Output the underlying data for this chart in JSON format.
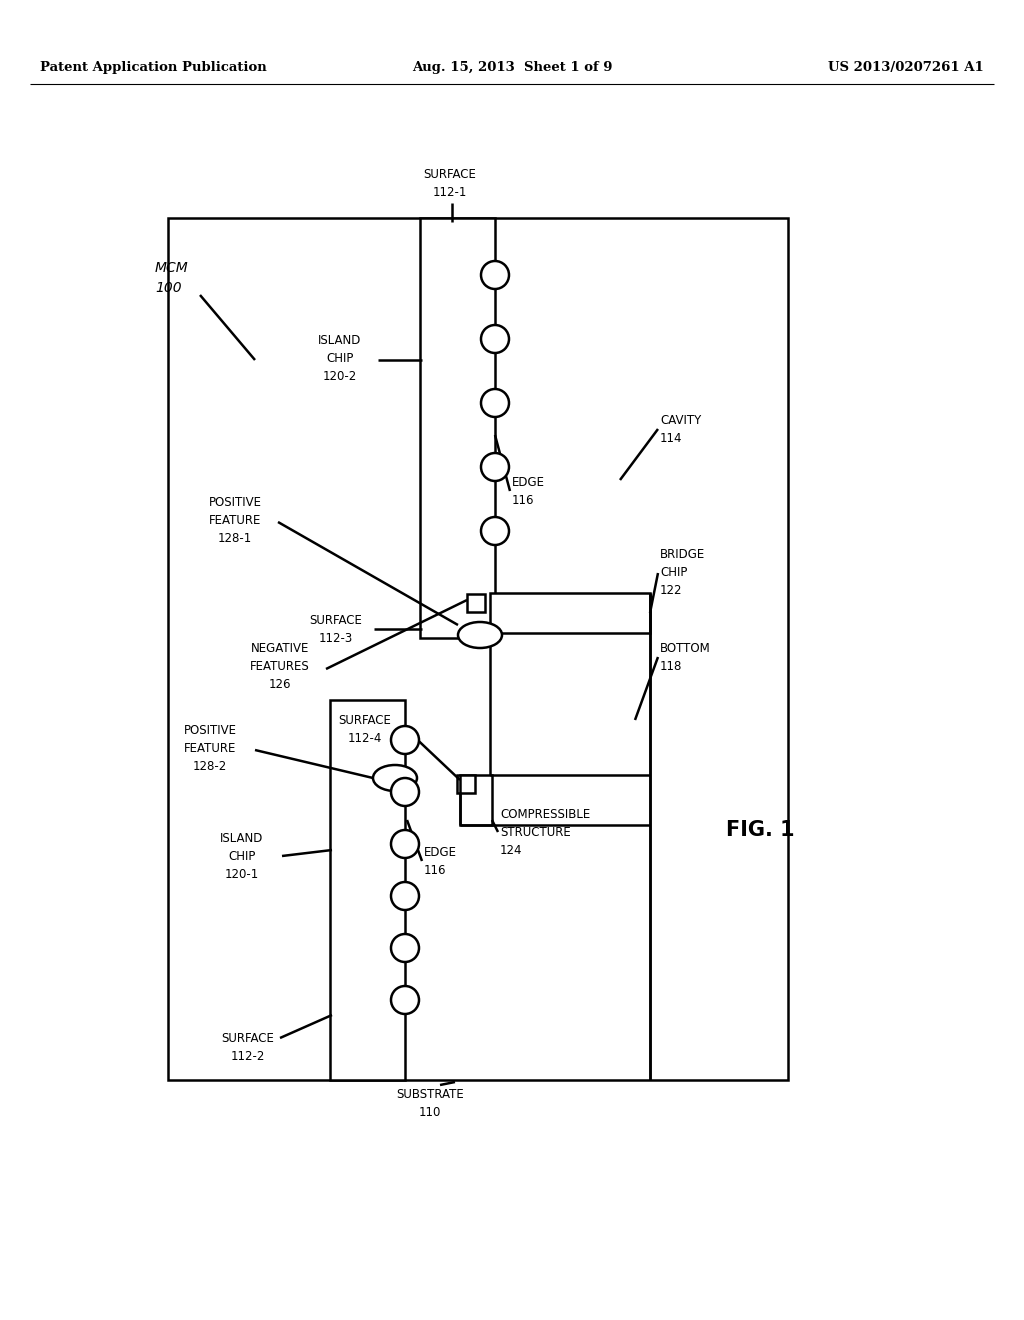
{
  "header_left": "Patent Application Publication",
  "header_mid": "Aug. 15, 2013  Sheet 1 of 9",
  "header_right": "US 2013/0207261 A1",
  "bg": "#ffffff",
  "lc": "#000000",
  "fig_label": "FIG. 1",
  "lw": 1.8
}
